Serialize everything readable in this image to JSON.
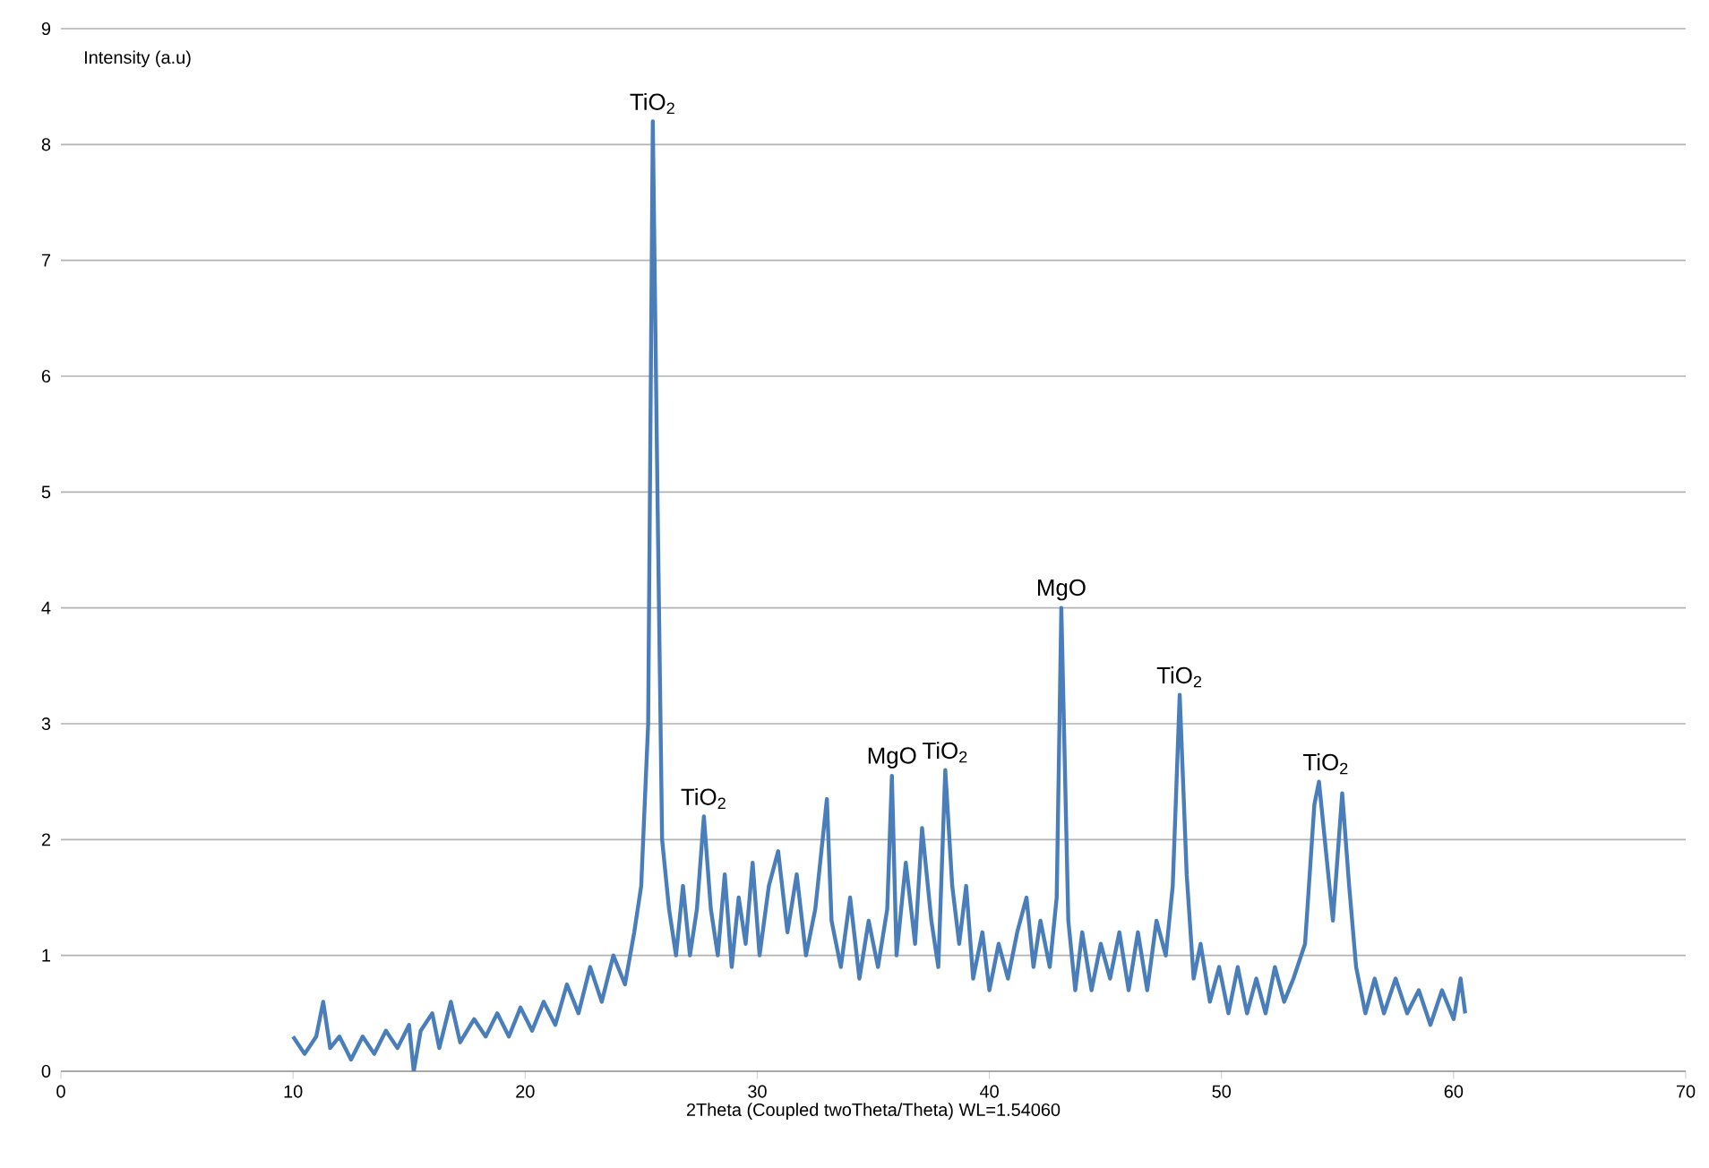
{
  "chart_data": {
    "type": "line",
    "xlabel": "2Theta (Coupled twoTheta/Theta) WL=1.54060",
    "ylabel": "Intensity (a.u)",
    "xlim": [
      0,
      70
    ],
    "xticks": [
      0,
      10,
      20,
      30,
      40,
      50,
      60,
      70
    ],
    "ylim": [
      0,
      9
    ],
    "yticks": [
      0,
      1,
      2,
      3,
      4,
      5,
      6,
      7,
      8,
      9
    ],
    "grid": "y",
    "marker": "none",
    "line_style": "solid",
    "series": [
      {
        "color": "#4a7ebb",
        "x": [
          10.0,
          10.5,
          11.0,
          11.3,
          11.6,
          12.0,
          12.5,
          13.0,
          13.5,
          14.0,
          14.5,
          15.0,
          15.2,
          15.5,
          16.0,
          16.3,
          16.8,
          17.2,
          17.8,
          18.3,
          18.8,
          19.3,
          19.8,
          20.3,
          20.8,
          21.3,
          21.8,
          22.3,
          22.8,
          23.3,
          23.8,
          24.3,
          24.7,
          25.0,
          25.3,
          25.5,
          25.7,
          25.9,
          26.2,
          26.5,
          26.8,
          27.1,
          27.4,
          27.7,
          28.0,
          28.3,
          28.6,
          28.9,
          29.2,
          29.5,
          29.8,
          30.1,
          30.5,
          30.9,
          31.3,
          31.7,
          32.1,
          32.5,
          33.0,
          33.2,
          33.6,
          34.0,
          34.4,
          34.8,
          35.2,
          35.6,
          35.8,
          36.0,
          36.4,
          36.8,
          37.1,
          37.5,
          37.8,
          38.1,
          38.4,
          38.7,
          39.0,
          39.3,
          39.7,
          40.0,
          40.4,
          40.8,
          41.2,
          41.6,
          41.9,
          42.2,
          42.6,
          42.9,
          43.1,
          43.4,
          43.7,
          44.0,
          44.4,
          44.8,
          45.2,
          45.6,
          46.0,
          46.4,
          46.8,
          47.2,
          47.6,
          47.9,
          48.2,
          48.5,
          48.8,
          49.1,
          49.5,
          49.9,
          50.3,
          50.7,
          51.1,
          51.5,
          51.9,
          52.3,
          52.7,
          53.1,
          53.6,
          54.0,
          54.2,
          54.5,
          54.8,
          55.2,
          55.5,
          55.8,
          56.2,
          56.6,
          57.0,
          57.5,
          58.0,
          58.5,
          59.0,
          59.5,
          60.0,
          60.3,
          60.5
        ],
        "values": [
          0.3,
          0.15,
          0.3,
          0.6,
          0.2,
          0.3,
          0.1,
          0.3,
          0.15,
          0.35,
          0.2,
          0.4,
          0.0,
          0.35,
          0.5,
          0.2,
          0.6,
          0.25,
          0.45,
          0.3,
          0.5,
          0.3,
          0.55,
          0.35,
          0.6,
          0.4,
          0.75,
          0.5,
          0.9,
          0.6,
          1.0,
          0.75,
          1.2,
          1.6,
          3.0,
          8.2,
          5.0,
          2.0,
          1.4,
          1.0,
          1.6,
          1.0,
          1.4,
          2.2,
          1.4,
          1.0,
          1.7,
          0.9,
          1.5,
          1.1,
          1.8,
          1.0,
          1.6,
          1.9,
          1.2,
          1.7,
          1.0,
          1.4,
          2.35,
          1.3,
          0.9,
          1.5,
          0.8,
          1.3,
          0.9,
          1.4,
          2.55,
          1.0,
          1.8,
          1.1,
          2.1,
          1.3,
          0.9,
          2.6,
          1.6,
          1.1,
          1.6,
          0.8,
          1.2,
          0.7,
          1.1,
          0.8,
          1.2,
          1.5,
          0.9,
          1.3,
          0.9,
          1.5,
          4.0,
          1.3,
          0.7,
          1.2,
          0.7,
          1.1,
          0.8,
          1.2,
          0.7,
          1.2,
          0.7,
          1.3,
          1.0,
          1.6,
          3.25,
          1.7,
          0.8,
          1.1,
          0.6,
          0.9,
          0.5,
          0.9,
          0.5,
          0.8,
          0.5,
          0.9,
          0.6,
          0.8,
          1.1,
          2.3,
          2.5,
          1.9,
          1.3,
          2.4,
          1.6,
          0.9,
          0.5,
          0.8,
          0.5,
          0.8,
          0.5,
          0.7,
          0.4,
          0.7,
          0.45,
          0.8,
          0.5
        ]
      }
    ],
    "annotations": [
      {
        "text": "TiO$_{2}$",
        "x": 25.5,
        "y": 8.2
      },
      {
        "text": "TiO$_{2}$",
        "x": 27.7,
        "y": 2.2
      },
      {
        "text": "MgO",
        "x": 35.8,
        "y": 2.55
      },
      {
        "text": "TiO$_{2}$",
        "x": 38.1,
        "y": 2.6
      },
      {
        "text": "MgO",
        "x": 43.1,
        "y": 4.0
      },
      {
        "text": "TiO$_{2}$",
        "x": 48.2,
        "y": 3.25
      },
      {
        "text": "TiO$_{2}$",
        "x": 54.5,
        "y": 2.5
      }
    ]
  }
}
